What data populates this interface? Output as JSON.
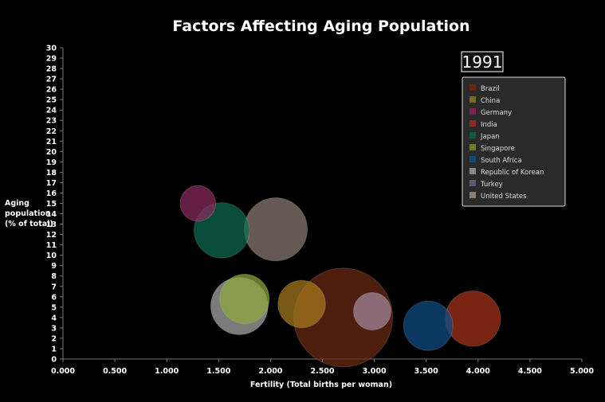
{
  "chart_data": {
    "type": "bubble",
    "title": "Factors Affecting Aging Population",
    "year": "1991",
    "xlabel": "Fertility (Total births per woman)",
    "ylabel_lines": [
      "Aging",
      "population",
      "(% of total)"
    ],
    "xlim": [
      0,
      5
    ],
    "ylim": [
      0,
      30
    ],
    "x_ticks": [
      "0.000",
      "0.500",
      "1.000",
      "1.500",
      "2.000",
      "2.500",
      "3.000",
      "3.500",
      "4.000",
      "4.500",
      "5.000"
    ],
    "y_ticks": [
      "0",
      "1",
      "2",
      "3",
      "4",
      "5",
      "6",
      "7",
      "8",
      "9",
      "10",
      "11",
      "12",
      "13",
      "14",
      "15",
      "16",
      "17",
      "18",
      "19",
      "20",
      "21",
      "22",
      "23",
      "24",
      "25",
      "26",
      "27",
      "28",
      "29",
      "30"
    ],
    "legend": [
      "Brazil",
      "China",
      "Germany",
      "India",
      "Japan",
      "Singapore",
      "South Africa",
      "Republic of Korean",
      "Turkey",
      "United States"
    ],
    "series": [
      {
        "name": "India",
        "x": 2.7,
        "y": 4.0,
        "color": "#6b2a12"
      },
      {
        "name": "China",
        "x": 2.3,
        "y": 5.3,
        "color": "#a87a1e"
      },
      {
        "name": "Brazil",
        "x": 3.95,
        "y": 3.9,
        "color": "#a8321a"
      },
      {
        "name": "South Africa",
        "x": 3.52,
        "y": 3.2,
        "color": "#0f4e86"
      },
      {
        "name": "United States",
        "x": 2.05,
        "y": 12.5,
        "color": "#8a7c73"
      },
      {
        "name": "Republic of Korean",
        "x": 1.7,
        "y": 5.1,
        "color": "#aaaaaa"
      },
      {
        "name": "Singapore",
        "x": 1.75,
        "y": 5.8,
        "color": "#8fa83a"
      },
      {
        "name": "Turkey",
        "x": 2.98,
        "y": 4.6,
        "color": "#a38aa0"
      },
      {
        "name": "Japan",
        "x": 1.53,
        "y": 12.4,
        "color": "#0e6a52"
      },
      {
        "name": "Germany",
        "x": 1.3,
        "y": 15.0,
        "color": "#8a2a5e"
      }
    ],
    "bubble_size": {
      "India": 1.0,
      "China": 0.48,
      "Brazil": 0.56,
      "South Africa": 0.5,
      "United States": 0.64,
      "Republic of Korean": 0.58,
      "Singapore": 0.5,
      "Turkey": 0.38,
      "Japan": 0.56,
      "Germany": 0.36
    },
    "legend_colors": [
      "#6b2414",
      "#7a6a2a",
      "#7a2452",
      "#8a2a1e",
      "#0e5a44",
      "#6a7a28",
      "#0f4a78",
      "#8a8a8a",
      "#5a5a6a",
      "#8a7c73"
    ]
  }
}
